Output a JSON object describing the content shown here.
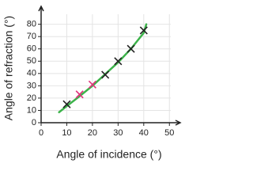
{
  "chart_data": {
    "type": "scatter",
    "xlabel": "Angle of incidence (°)",
    "ylabel": "Angle of refraction (°)",
    "xlim": [
      0,
      53
    ],
    "ylim": [
      0,
      92
    ],
    "xticks": [
      0,
      10,
      20,
      30,
      40,
      50
    ],
    "yticks": [
      0,
      10,
      20,
      30,
      40,
      50,
      60,
      70,
      80
    ],
    "grid": true,
    "series": [
      {
        "type": "line",
        "color": "#3cb34a",
        "x": [
          7,
          10,
          15,
          20,
          25,
          30,
          35,
          40,
          41
        ],
        "values": [
          8.5,
          13.5,
          21.5,
          30,
          39.5,
          49,
          60,
          73,
          80
        ]
      },
      {
        "type": "scatter",
        "marker": "x",
        "color": "#222222",
        "x": [
          10,
          25,
          30,
          35,
          40
        ],
        "values": [
          15,
          39,
          50,
          60,
          75
        ]
      },
      {
        "type": "scatter",
        "marker": "x",
        "color": "#e0357c",
        "x": [
          15,
          20
        ],
        "values": [
          23,
          31
        ]
      }
    ]
  }
}
